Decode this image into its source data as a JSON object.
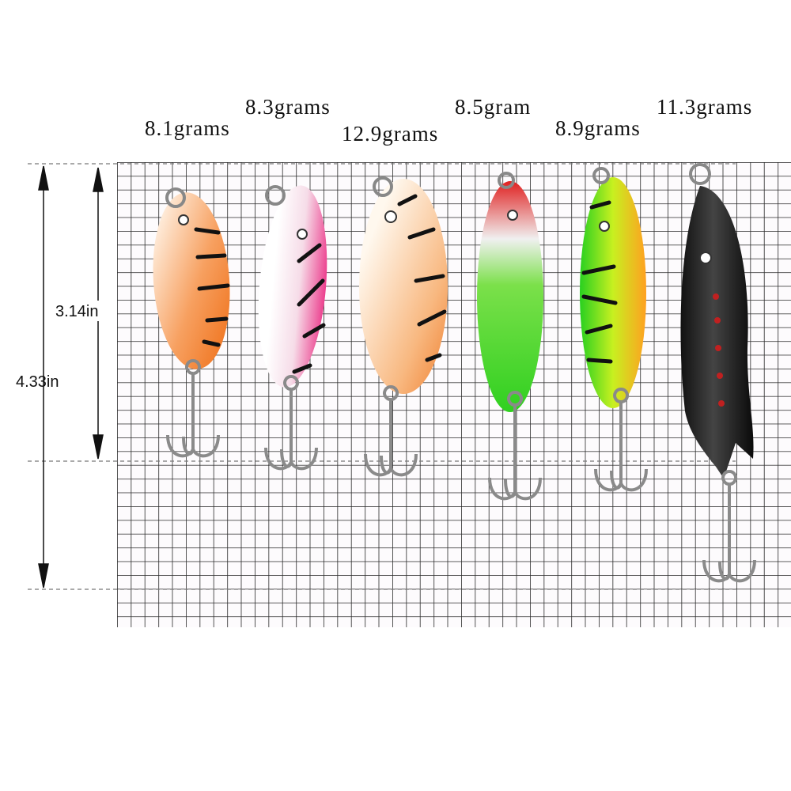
{
  "weights": [
    "8.1grams",
    "8.3grams",
    "12.9grams",
    "8.5gram",
    "8.9grams",
    "11.3grams"
  ],
  "dimensions": {
    "short": "3.14in",
    "long": "4.33in"
  }
}
